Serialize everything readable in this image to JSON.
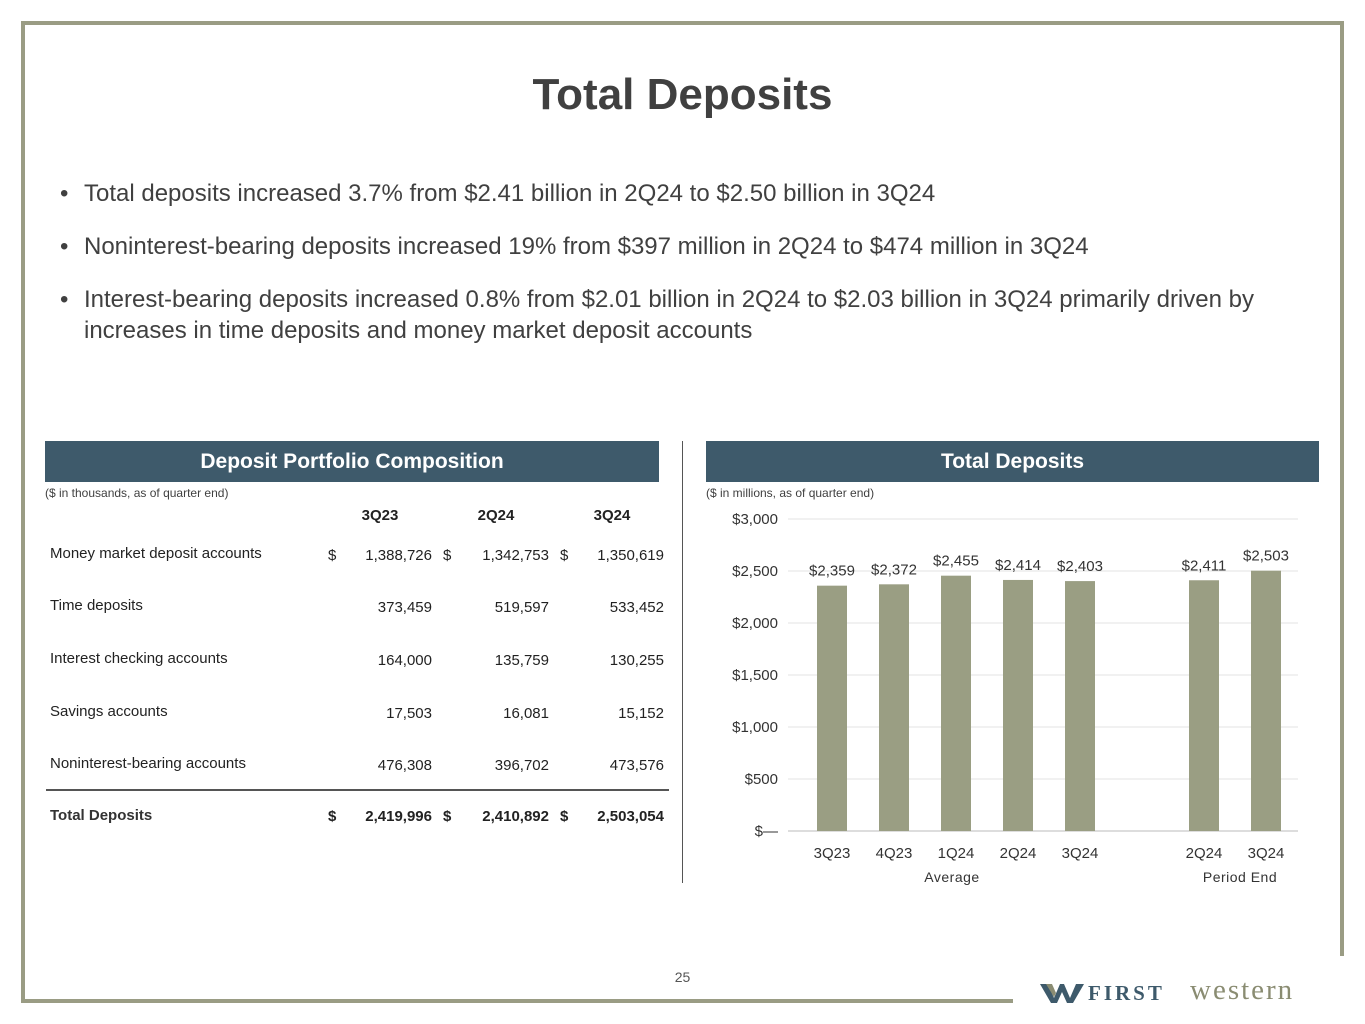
{
  "title": "Total Deposits",
  "bullets": [
    "Total deposits increased 3.7% from $2.41 billion in 2Q24 to $2.50 billion in 3Q24",
    "Noninterest-bearing deposits increased 19% from $397 million in 2Q24 to $474 million in  3Q24",
    "Interest-bearing deposits increased 0.8% from $2.01 billion in 2Q24 to $2.03 billion in 3Q24 primarily driven by increases in time deposits and money market deposit accounts"
  ],
  "bullet_glyph": "•",
  "table": {
    "header": "Deposit Portfolio Composition",
    "note": "($ in thousands, as of quarter end)",
    "columns": [
      "3Q23",
      "2Q24",
      "3Q24"
    ],
    "currency_symbol": "$",
    "rows": [
      {
        "label": "Money market deposit accounts",
        "values": [
          "1,388,726",
          "1,342,753",
          "1,350,619"
        ]
      },
      {
        "label": "Time deposits",
        "values": [
          "373,459",
          "519,597",
          "533,452"
        ]
      },
      {
        "label": "Interest checking accounts",
        "values": [
          "164,000",
          "135,759",
          "130,255"
        ]
      },
      {
        "label": "Savings accounts",
        "values": [
          "17,503",
          "16,081",
          "15,152"
        ]
      },
      {
        "label": "Noninterest-bearing accounts",
        "values": [
          "476,308",
          "396,702",
          "473,576"
        ]
      }
    ],
    "total": {
      "label": "Total Deposits",
      "values": [
        "2,419,996",
        "2,410,892",
        "2,503,054"
      ]
    }
  },
  "chart_panel": {
    "header": "Total Deposits",
    "note": "($ in millions, as of quarter end)"
  },
  "chart_data": {
    "type": "bar",
    "categories": [
      "3Q23",
      "4Q23",
      "1Q24",
      "2Q24",
      "3Q24",
      "2Q24",
      "3Q24"
    ],
    "values": [
      2359,
      2372,
      2455,
      2414,
      2403,
      2411,
      2503
    ],
    "data_labels": [
      "$2,359",
      "$2,372",
      "$2,455",
      "$2,414",
      "$2,403",
      "$2,411",
      "$2,503"
    ],
    "groups": [
      {
        "label": "Average",
        "categories": [
          "3Q23",
          "4Q23",
          "1Q24",
          "2Q24",
          "3Q24"
        ]
      },
      {
        "label": "Period End",
        "categories": [
          "2Q24",
          "3Q24"
        ]
      }
    ],
    "ylim": [
      0,
      3000
    ],
    "yticks": [
      0,
      500,
      1000,
      1500,
      2000,
      2500,
      3000
    ],
    "ytick_labels": [
      "$—",
      "$500",
      "$1,000",
      "$1,500",
      "$2,000",
      "$2,500",
      "$3,000"
    ],
    "grid": true,
    "bar_color": "#9a9e83"
  },
  "page_number": "25",
  "logo": {
    "word1": "FIRST",
    "word2": "western"
  },
  "colors": {
    "frame": "#9a9c84",
    "header_bg": "#3e5a6b",
    "bar": "#9a9e83",
    "logo_blue": "#3e5a6b",
    "logo_olive": "#8a8c72"
  }
}
